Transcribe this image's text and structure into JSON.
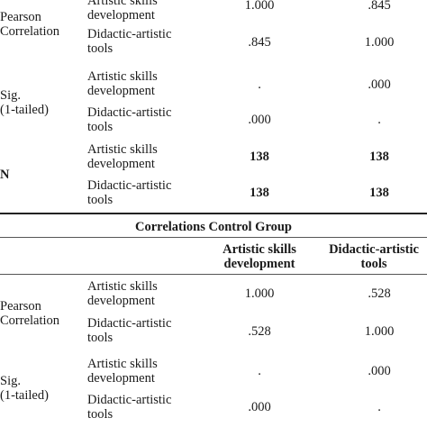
{
  "table1": {
    "rows": {
      "pearson": {
        "label": [
          "Pearson",
          "Correlation"
        ],
        "artistic": {
          "var": [
            "Artistic skills",
            "development"
          ],
          "v1": "1.000",
          "v2": ".845"
        },
        "didactic": {
          "var": [
            "Didactic-artistic",
            "tools"
          ],
          "v1": ".845",
          "v2": "1.000"
        }
      },
      "sig": {
        "label": [
          "Sig.",
          "(1-tailed)"
        ],
        "artistic": {
          "var": [
            "Artistic skills",
            "development"
          ],
          "v1": ".",
          "v2": ".000"
        },
        "didactic": {
          "var": [
            "Didactic-artistic",
            "tools"
          ],
          "v1": ".000",
          "v2": "."
        }
      },
      "n": {
        "label": [
          "N"
        ],
        "artistic": {
          "var": [
            "Artistic skills",
            "development"
          ],
          "v1": "138",
          "v2": "138"
        },
        "didactic": {
          "var": [
            "Didactic-artistic",
            "tools"
          ],
          "v1": "138",
          "v2": "138"
        }
      }
    }
  },
  "table2": {
    "title": "Correlations Control Group",
    "columns": [
      [
        "Artistic skills",
        "development"
      ],
      [
        "Didactic-artistic",
        "tools"
      ]
    ],
    "rows": {
      "pearson": {
        "label": [
          "Pearson",
          "Correlation"
        ],
        "artistic": {
          "var": [
            "Artistic skills",
            "development"
          ],
          "v1": "1.000",
          "v2": ".528"
        },
        "didactic": {
          "var": [
            "Didactic-artistic",
            "tools"
          ],
          "v1": ".528",
          "v2": "1.000"
        }
      },
      "sig": {
        "label": [
          "Sig.",
          "(1-tailed)"
        ],
        "artistic": {
          "var": [
            "Artistic skills",
            "development"
          ],
          "v1": ".",
          "v2": ".000"
        },
        "didactic": {
          "var": [
            "Didactic-artistic",
            "tools"
          ],
          "v1": ".000",
          "v2": "."
        }
      }
    }
  }
}
